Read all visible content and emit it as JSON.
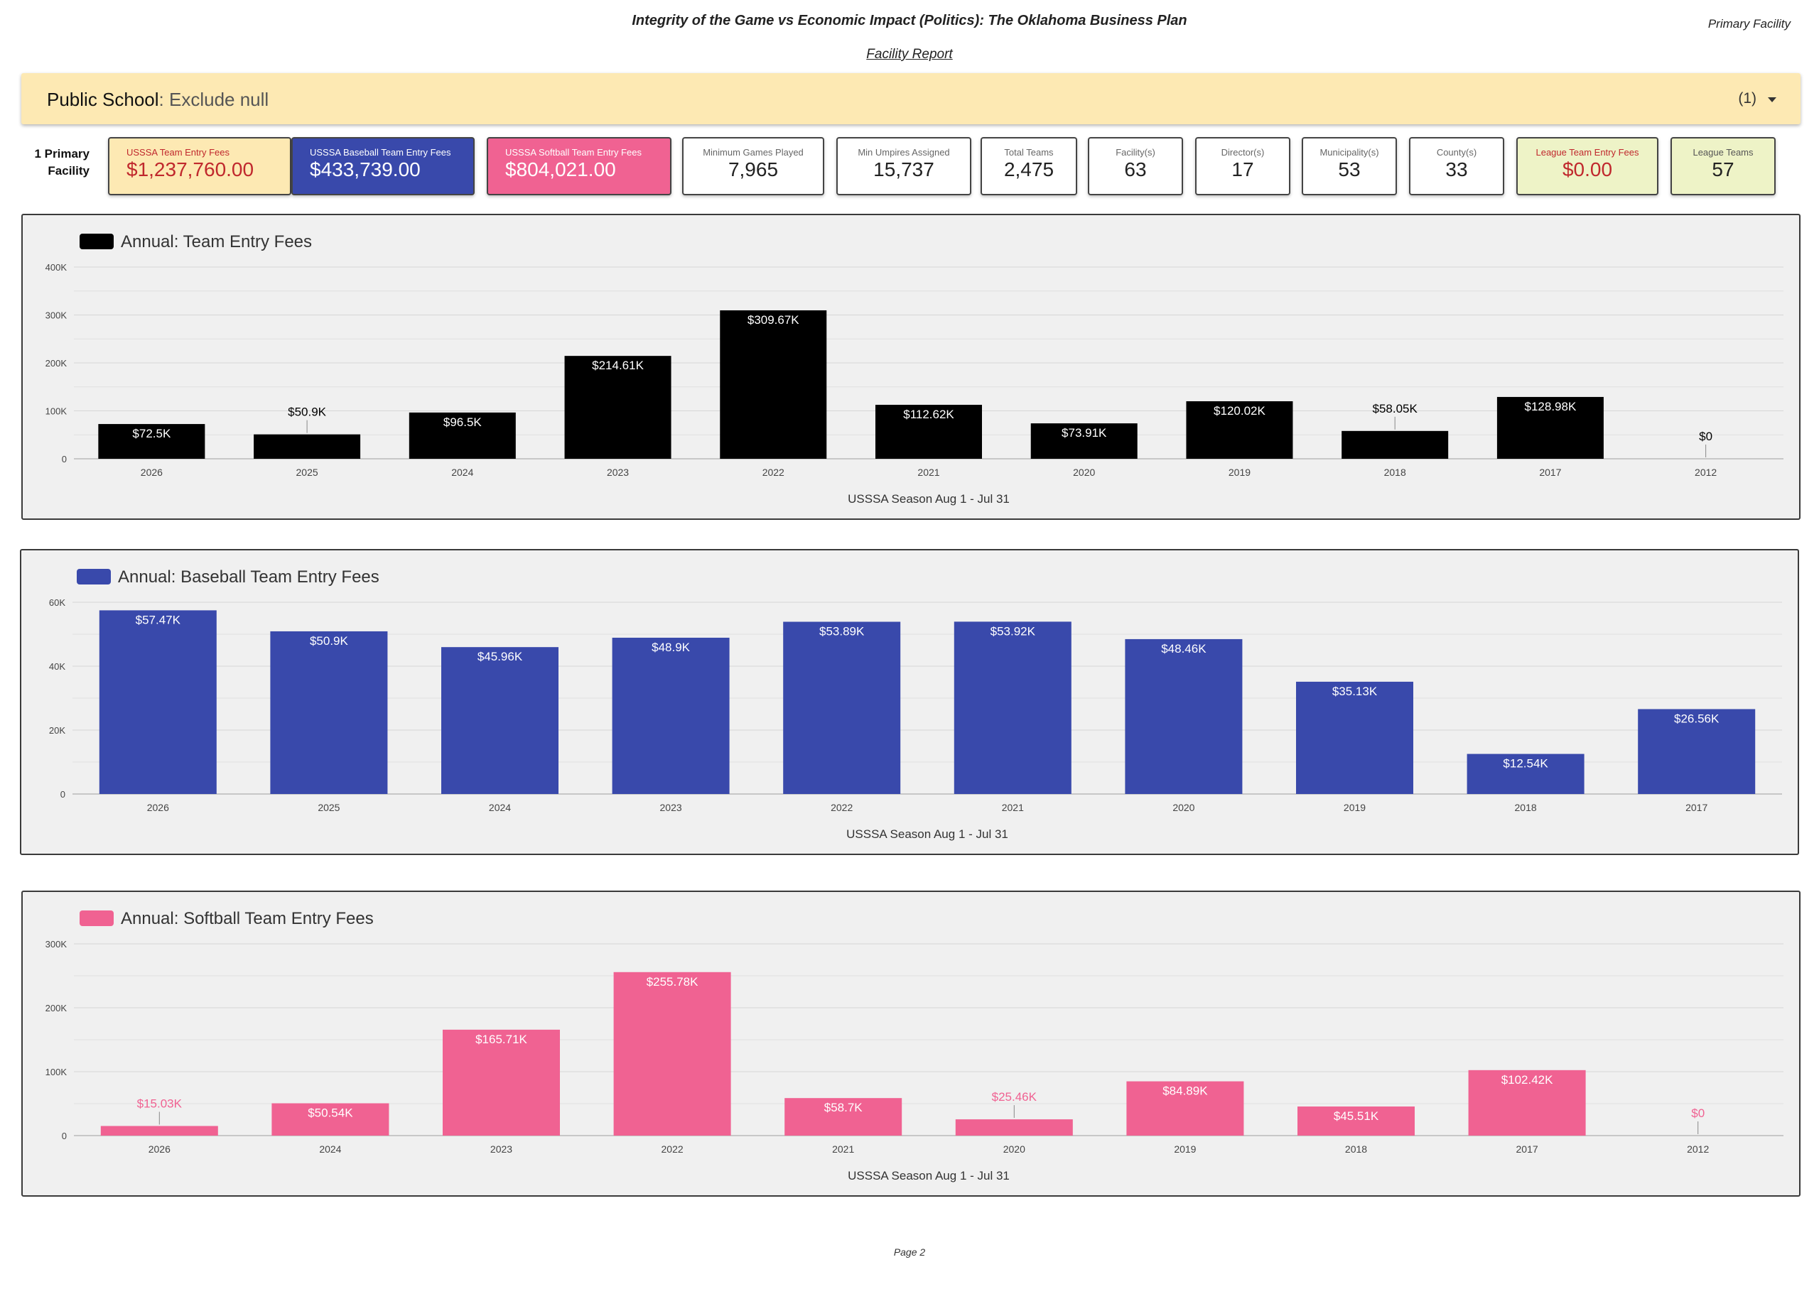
{
  "header": {
    "title": "Integrity of the Game vs Economic Impact (Politics): The Oklahoma Business Plan",
    "subtitle": "Facility Report",
    "right_label": "Primary Facility"
  },
  "filter": {
    "label": "Public School",
    "value": ": Exclude null",
    "count": "(1)"
  },
  "kpi_row_label": [
    "1 Primary",
    "Facility"
  ],
  "kpis": [
    {
      "label": "USSSA Team Entry Fees",
      "value": "$1,237,760.00",
      "style": "yellow"
    },
    {
      "label": "USSSA Baseball Team Entry Fees",
      "value": "$433,739.00",
      "style": "blue"
    },
    {
      "label": "USSSA Softball Team Entry Fees",
      "value": "$804,021.00",
      "style": "pink"
    },
    {
      "label": "Minimum Games Played",
      "value": "7,965",
      "style": "white"
    },
    {
      "label": "Min Umpires Assigned",
      "value": "15,737",
      "style": "white"
    },
    {
      "label": "Total Teams",
      "value": "2,475",
      "style": "white"
    },
    {
      "label": "Facility(s)",
      "value": "63",
      "style": "white"
    },
    {
      "label": "Director(s)",
      "value": "17",
      "style": "white"
    },
    {
      "label": "Municipality(s)",
      "value": "53",
      "style": "white"
    },
    {
      "label": "County(s)",
      "value": "33",
      "style": "white"
    },
    {
      "label": "League Team Entry Fees",
      "value": "$0.00",
      "style": "lime-red"
    },
    {
      "label": "League Teams",
      "value": "57",
      "style": "lime-dark"
    }
  ],
  "colors": {
    "team": "#000000",
    "baseball": "#3949ab",
    "softball": "#f06292"
  },
  "chart_data": [
    {
      "type": "bar",
      "title": "Annual: Team Entry Fees",
      "xlabel": "USSSA Season Aug 1 - Jul 31",
      "ylabel": "",
      "color": "#000000",
      "categories": [
        "2026",
        "2025",
        "2024",
        "2023",
        "2022",
        "2021",
        "2020",
        "2019",
        "2018",
        "2017",
        "2012"
      ],
      "values": [
        72500,
        50900,
        96500,
        214610,
        309670,
        112620,
        73910,
        120020,
        58050,
        128980,
        0
      ],
      "data_labels": [
        "$72.5K",
        "$50.9K",
        "$96.5K",
        "$214.61K",
        "$309.67K",
        "$112.62K",
        "$73.91K",
        "$120.02K",
        "$58.05K",
        "$128.98K",
        "$0"
      ],
      "ylim": [
        0,
        400000
      ],
      "yticks": [
        0,
        100000,
        200000,
        300000,
        400000
      ],
      "ytick_labels": [
        "0",
        "100K",
        "200K",
        "300K",
        "400K"
      ],
      "grid": true,
      "legend": "top-left"
    },
    {
      "type": "bar",
      "title": "Annual: Baseball Team Entry Fees",
      "xlabel": "USSSA Season Aug 1 - Jul 31",
      "ylabel": "",
      "color": "#3949ab",
      "categories": [
        "2026",
        "2025",
        "2024",
        "2023",
        "2022",
        "2021",
        "2020",
        "2019",
        "2018",
        "2017"
      ],
      "values": [
        57470,
        50900,
        45960,
        48900,
        53890,
        53920,
        48460,
        35130,
        12540,
        26560
      ],
      "data_labels": [
        "$57.47K",
        "$50.9K",
        "$45.96K",
        "$48.9K",
        "$53.89K",
        "$53.92K",
        "$48.46K",
        "$35.13K",
        "$12.54K",
        "$26.56K"
      ],
      "ylim": [
        0,
        60000
      ],
      "yticks": [
        0,
        20000,
        40000,
        60000
      ],
      "ytick_labels": [
        "0",
        "20K",
        "40K",
        "60K"
      ],
      "grid": true,
      "legend": "top-left"
    },
    {
      "type": "bar",
      "title": "Annual: Softball Team Entry Fees",
      "xlabel": "USSSA Season Aug 1 - Jul 31",
      "ylabel": "",
      "color": "#f06292",
      "categories": [
        "2026",
        "2024",
        "2023",
        "2022",
        "2021",
        "2020",
        "2019",
        "2018",
        "2017",
        "2012"
      ],
      "values": [
        15030,
        50540,
        165710,
        255780,
        58700,
        25460,
        84890,
        45510,
        102420,
        0
      ],
      "data_labels": [
        "$15.03K",
        "$50.54K",
        "$165.71K",
        "$255.78K",
        "$58.7K",
        "$25.46K",
        "$84.89K",
        "$45.51K",
        "$102.42K",
        "$0"
      ],
      "ylim": [
        0,
        300000
      ],
      "yticks": [
        0,
        100000,
        200000,
        300000
      ],
      "ytick_labels": [
        "0",
        "100K",
        "200K",
        "300K"
      ],
      "grid": true,
      "legend": "top-left"
    }
  ],
  "footer": {
    "page": "Page 2"
  }
}
